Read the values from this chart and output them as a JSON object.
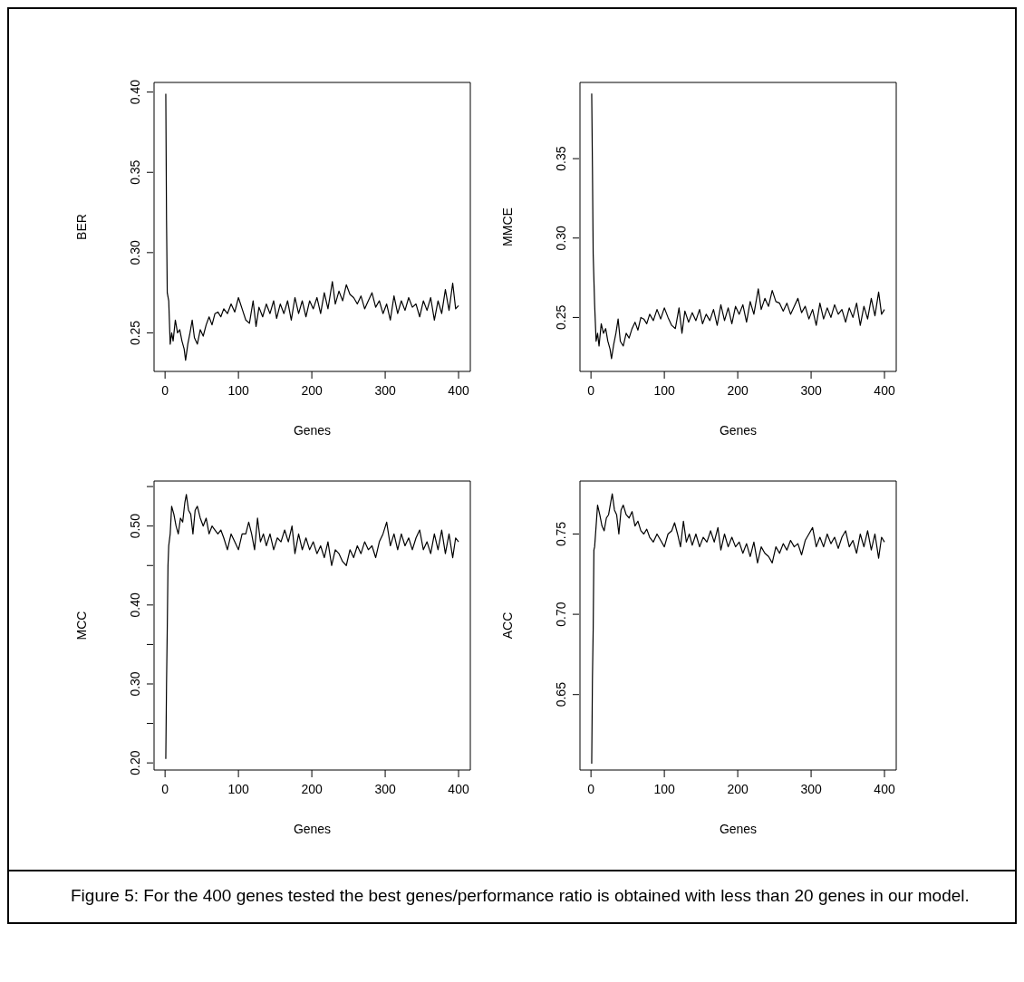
{
  "chart_data": [
    {
      "type": "line",
      "xlabel": "Genes",
      "ylabel": "BER",
      "color": "#000000",
      "xlim": [
        -15,
        416
      ],
      "xticks": [
        0,
        100,
        200,
        300,
        400
      ],
      "ylim": [
        0.226,
        0.406
      ],
      "yticks": [
        {
          "value": 0.25,
          "label": "0.25"
        },
        {
          "value": 0.3,
          "label": "0.30"
        },
        {
          "value": 0.35,
          "label": "0.35"
        },
        {
          "value": 0.4,
          "label": "0.40"
        }
      ],
      "x": [
        1,
        2,
        3,
        5,
        7,
        9,
        11,
        14,
        17,
        20,
        23,
        26,
        28,
        31,
        34,
        37,
        40,
        44,
        48,
        52,
        56,
        60,
        64,
        68,
        72,
        76,
        80,
        85,
        90,
        95,
        100,
        105,
        110,
        115,
        120,
        124,
        128,
        133,
        138,
        143,
        148,
        152,
        157,
        162,
        167,
        172,
        177,
        182,
        187,
        192,
        197,
        202,
        207,
        212,
        217,
        222,
        228,
        232,
        237,
        242,
        247,
        252,
        257,
        262,
        267,
        272,
        277,
        282,
        287,
        292,
        297,
        302,
        307,
        312,
        317,
        322,
        327,
        332,
        337,
        342,
        347,
        352,
        357,
        362,
        367,
        372,
        377,
        382,
        387,
        392,
        396,
        400
      ],
      "values": [
        0.399,
        0.32,
        0.275,
        0.27,
        0.243,
        0.25,
        0.245,
        0.258,
        0.25,
        0.252,
        0.245,
        0.24,
        0.233,
        0.243,
        0.25,
        0.258,
        0.247,
        0.243,
        0.252,
        0.248,
        0.255,
        0.26,
        0.255,
        0.262,
        0.263,
        0.26,
        0.265,
        0.262,
        0.268,
        0.263,
        0.272,
        0.265,
        0.258,
        0.256,
        0.27,
        0.254,
        0.266,
        0.26,
        0.268,
        0.262,
        0.27,
        0.259,
        0.268,
        0.262,
        0.27,
        0.258,
        0.272,
        0.262,
        0.27,
        0.26,
        0.27,
        0.265,
        0.272,
        0.262,
        0.275,
        0.265,
        0.282,
        0.268,
        0.276,
        0.27,
        0.28,
        0.274,
        0.272,
        0.268,
        0.273,
        0.265,
        0.27,
        0.275,
        0.266,
        0.27,
        0.262,
        0.268,
        0.258,
        0.273,
        0.262,
        0.27,
        0.264,
        0.272,
        0.266,
        0.268,
        0.26,
        0.27,
        0.264,
        0.272,
        0.258,
        0.27,
        0.262,
        0.277,
        0.264,
        0.281,
        0.265,
        0.267
      ]
    },
    {
      "type": "line",
      "xlabel": "Genes",
      "ylabel": "MMCE",
      "color": "#000000",
      "xlim": [
        -15,
        416
      ],
      "xticks": [
        0,
        100,
        200,
        300,
        400
      ],
      "ylim": [
        0.216,
        0.398
      ],
      "yticks": [
        {
          "value": 0.25,
          "label": "0.25"
        },
        {
          "value": 0.3,
          "label": "0.30"
        },
        {
          "value": 0.35,
          "label": "0.35"
        }
      ],
      "x": [
        1,
        2,
        3,
        5,
        7,
        9,
        11,
        14,
        17,
        20,
        23,
        26,
        28,
        31,
        34,
        37,
        40,
        44,
        48,
        52,
        56,
        60,
        64,
        68,
        72,
        76,
        80,
        85,
        90,
        95,
        100,
        105,
        110,
        115,
        120,
        124,
        128,
        133,
        138,
        143,
        148,
        152,
        157,
        162,
        167,
        172,
        177,
        182,
        187,
        192,
        197,
        202,
        207,
        212,
        217,
        222,
        228,
        232,
        237,
        242,
        247,
        252,
        257,
        262,
        267,
        272,
        277,
        282,
        287,
        292,
        297,
        302,
        307,
        312,
        317,
        322,
        327,
        332,
        337,
        342,
        347,
        352,
        357,
        362,
        367,
        372,
        377,
        382,
        387,
        392,
        396,
        400
      ],
      "values": [
        0.391,
        0.345,
        0.29,
        0.258,
        0.235,
        0.24,
        0.232,
        0.246,
        0.24,
        0.243,
        0.235,
        0.23,
        0.224,
        0.233,
        0.24,
        0.249,
        0.235,
        0.232,
        0.24,
        0.237,
        0.243,
        0.247,
        0.242,
        0.25,
        0.249,
        0.246,
        0.252,
        0.248,
        0.255,
        0.249,
        0.256,
        0.25,
        0.245,
        0.243,
        0.256,
        0.24,
        0.254,
        0.247,
        0.253,
        0.248,
        0.255,
        0.246,
        0.252,
        0.248,
        0.255,
        0.245,
        0.258,
        0.248,
        0.256,
        0.246,
        0.257,
        0.252,
        0.258,
        0.247,
        0.26,
        0.252,
        0.268,
        0.255,
        0.262,
        0.257,
        0.267,
        0.26,
        0.259,
        0.254,
        0.259,
        0.252,
        0.257,
        0.262,
        0.253,
        0.257,
        0.249,
        0.255,
        0.245,
        0.259,
        0.249,
        0.256,
        0.25,
        0.258,
        0.252,
        0.255,
        0.247,
        0.256,
        0.25,
        0.259,
        0.245,
        0.257,
        0.249,
        0.262,
        0.251,
        0.266,
        0.252,
        0.255
      ]
    },
    {
      "type": "line",
      "xlabel": "Genes",
      "ylabel": "MCC",
      "color": "#000000",
      "xlim": [
        -15,
        416
      ],
      "xticks": [
        0,
        100,
        200,
        300,
        400
      ],
      "ylim": [
        0.191,
        0.557
      ],
      "yticks": [
        {
          "value": 0.2,
          "label": "0.20"
        },
        {
          "value": 0.25,
          "label": null
        },
        {
          "value": 0.3,
          "label": "0.30"
        },
        {
          "value": 0.35,
          "label": null
        },
        {
          "value": 0.4,
          "label": "0.40"
        },
        {
          "value": 0.45,
          "label": null
        },
        {
          "value": 0.5,
          "label": "0.50"
        },
        {
          "value": 0.55,
          "label": null
        }
      ],
      "x": [
        1,
        2,
        3,
        4,
        5,
        7,
        9,
        12,
        15,
        18,
        21,
        24,
        27,
        29,
        32,
        35,
        38,
        41,
        44,
        48,
        52,
        56,
        60,
        64,
        68,
        72,
        76,
        80,
        85,
        90,
        95,
        100,
        105,
        110,
        114,
        118,
        122,
        126,
        130,
        134,
        138,
        143,
        148,
        153,
        158,
        163,
        168,
        173,
        177,
        182,
        187,
        192,
        197,
        202,
        207,
        212,
        217,
        222,
        227,
        232,
        237,
        242,
        247,
        252,
        257,
        262,
        267,
        272,
        277,
        282,
        287,
        292,
        297,
        302,
        307,
        312,
        317,
        322,
        327,
        332,
        337,
        342,
        347,
        352,
        357,
        362,
        367,
        372,
        377,
        382,
        387,
        392,
        396,
        400
      ],
      "values": [
        0.205,
        0.3,
        0.37,
        0.45,
        0.475,
        0.49,
        0.525,
        0.515,
        0.5,
        0.49,
        0.51,
        0.505,
        0.53,
        0.54,
        0.52,
        0.515,
        0.49,
        0.52,
        0.525,
        0.51,
        0.5,
        0.51,
        0.49,
        0.5,
        0.495,
        0.49,
        0.495,
        0.485,
        0.47,
        0.49,
        0.48,
        0.47,
        0.49,
        0.49,
        0.505,
        0.49,
        0.47,
        0.51,
        0.48,
        0.49,
        0.475,
        0.49,
        0.47,
        0.485,
        0.48,
        0.495,
        0.48,
        0.5,
        0.465,
        0.49,
        0.47,
        0.485,
        0.47,
        0.48,
        0.465,
        0.475,
        0.46,
        0.48,
        0.45,
        0.47,
        0.465,
        0.455,
        0.45,
        0.47,
        0.46,
        0.475,
        0.465,
        0.48,
        0.47,
        0.475,
        0.46,
        0.48,
        0.49,
        0.505,
        0.475,
        0.49,
        0.47,
        0.49,
        0.475,
        0.485,
        0.47,
        0.485,
        0.495,
        0.47,
        0.48,
        0.465,
        0.49,
        0.47,
        0.495,
        0.465,
        0.49,
        0.46,
        0.485,
        0.48
      ]
    },
    {
      "type": "line",
      "xlabel": "Genes",
      "ylabel": "ACC",
      "color": "#000000",
      "xlim": [
        -15,
        416
      ],
      "xticks": [
        0,
        100,
        200,
        300,
        400
      ],
      "ylim": [
        0.603,
        0.783
      ],
      "yticks": [
        {
          "value": 0.65,
          "label": "0.65"
        },
        {
          "value": 0.7,
          "label": "0.70"
        },
        {
          "value": 0.75,
          "label": "0.75"
        }
      ],
      "x": [
        1,
        2,
        3,
        4,
        5,
        7,
        9,
        12,
        15,
        18,
        21,
        24,
        27,
        29,
        32,
        35,
        38,
        41,
        44,
        48,
        52,
        56,
        60,
        64,
        68,
        72,
        76,
        80,
        85,
        90,
        95,
        100,
        105,
        110,
        114,
        118,
        122,
        126,
        130,
        134,
        138,
        143,
        148,
        153,
        158,
        163,
        168,
        173,
        177,
        182,
        187,
        192,
        197,
        202,
        207,
        212,
        217,
        222,
        227,
        232,
        237,
        242,
        247,
        252,
        257,
        262,
        267,
        272,
        277,
        282,
        287,
        292,
        297,
        302,
        307,
        312,
        317,
        322,
        327,
        332,
        337,
        342,
        347,
        352,
        357,
        362,
        367,
        372,
        377,
        382,
        387,
        392,
        396,
        400
      ],
      "values": [
        0.607,
        0.66,
        0.69,
        0.74,
        0.742,
        0.755,
        0.768,
        0.762,
        0.755,
        0.752,
        0.76,
        0.762,
        0.77,
        0.775,
        0.765,
        0.762,
        0.75,
        0.765,
        0.768,
        0.762,
        0.76,
        0.764,
        0.755,
        0.758,
        0.752,
        0.75,
        0.753,
        0.748,
        0.745,
        0.75,
        0.746,
        0.742,
        0.75,
        0.752,
        0.757,
        0.75,
        0.742,
        0.758,
        0.745,
        0.75,
        0.743,
        0.75,
        0.742,
        0.748,
        0.745,
        0.752,
        0.745,
        0.754,
        0.74,
        0.75,
        0.742,
        0.748,
        0.742,
        0.745,
        0.738,
        0.744,
        0.736,
        0.745,
        0.732,
        0.742,
        0.738,
        0.736,
        0.732,
        0.742,
        0.738,
        0.744,
        0.74,
        0.746,
        0.742,
        0.744,
        0.737,
        0.746,
        0.75,
        0.754,
        0.742,
        0.748,
        0.742,
        0.75,
        0.744,
        0.748,
        0.741,
        0.748,
        0.752,
        0.742,
        0.746,
        0.738,
        0.75,
        0.742,
        0.752,
        0.74,
        0.75,
        0.735,
        0.748,
        0.745
      ],
      "annotations": [
        "Figure 5: For the 400 genes tested the best genes/performance ratio is obtained with less than 20 genes in our model."
      ]
    }
  ]
}
